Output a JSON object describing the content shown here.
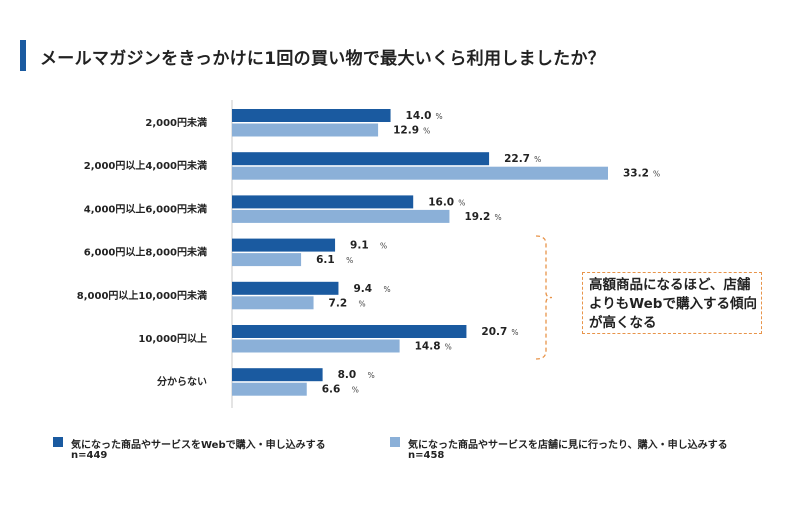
{
  "title": "メールマガジンをきっかけに1回の買い物で最大いくら利用しましたか？",
  "colors": {
    "accent": "#1a5aa0",
    "web": "#1a5aa0",
    "store": "#8bb0d8",
    "callout_border": "#e8944a"
  },
  "chart_data": {
    "type": "bar",
    "orientation": "horizontal",
    "categories": [
      "2,000円未満",
      "2,000円以上4,000円未満",
      "4,000円以上6,000円未満",
      "6,000円以上8,000円未満",
      "8,000円以上10,000円未満",
      "10,000円以上",
      "分からない"
    ],
    "series": [
      {
        "name": "気になった商品やサービスをWebで購入・申し込みする",
        "n": "n=449",
        "values": [
          14.0,
          22.7,
          16.0,
          9.1,
          9.4,
          20.7,
          8.0
        ],
        "color": "#1a5aa0"
      },
      {
        "name": "気になった商品やサービスを店舗に見に行ったり、購入・申し込みする",
        "n": "n=458",
        "values": [
          12.9,
          33.2,
          19.2,
          6.1,
          7.2,
          14.8,
          6.6
        ],
        "color": "#8bb0d8"
      }
    ],
    "unit": "%",
    "xlim": [
      0,
      36
    ],
    "grid": false,
    "legend_position": "bottom"
  },
  "callout": {
    "lines": [
      "高額商品になるほど、店舗",
      "よりもWebで購入する傾向",
      "が高くなる"
    ]
  }
}
